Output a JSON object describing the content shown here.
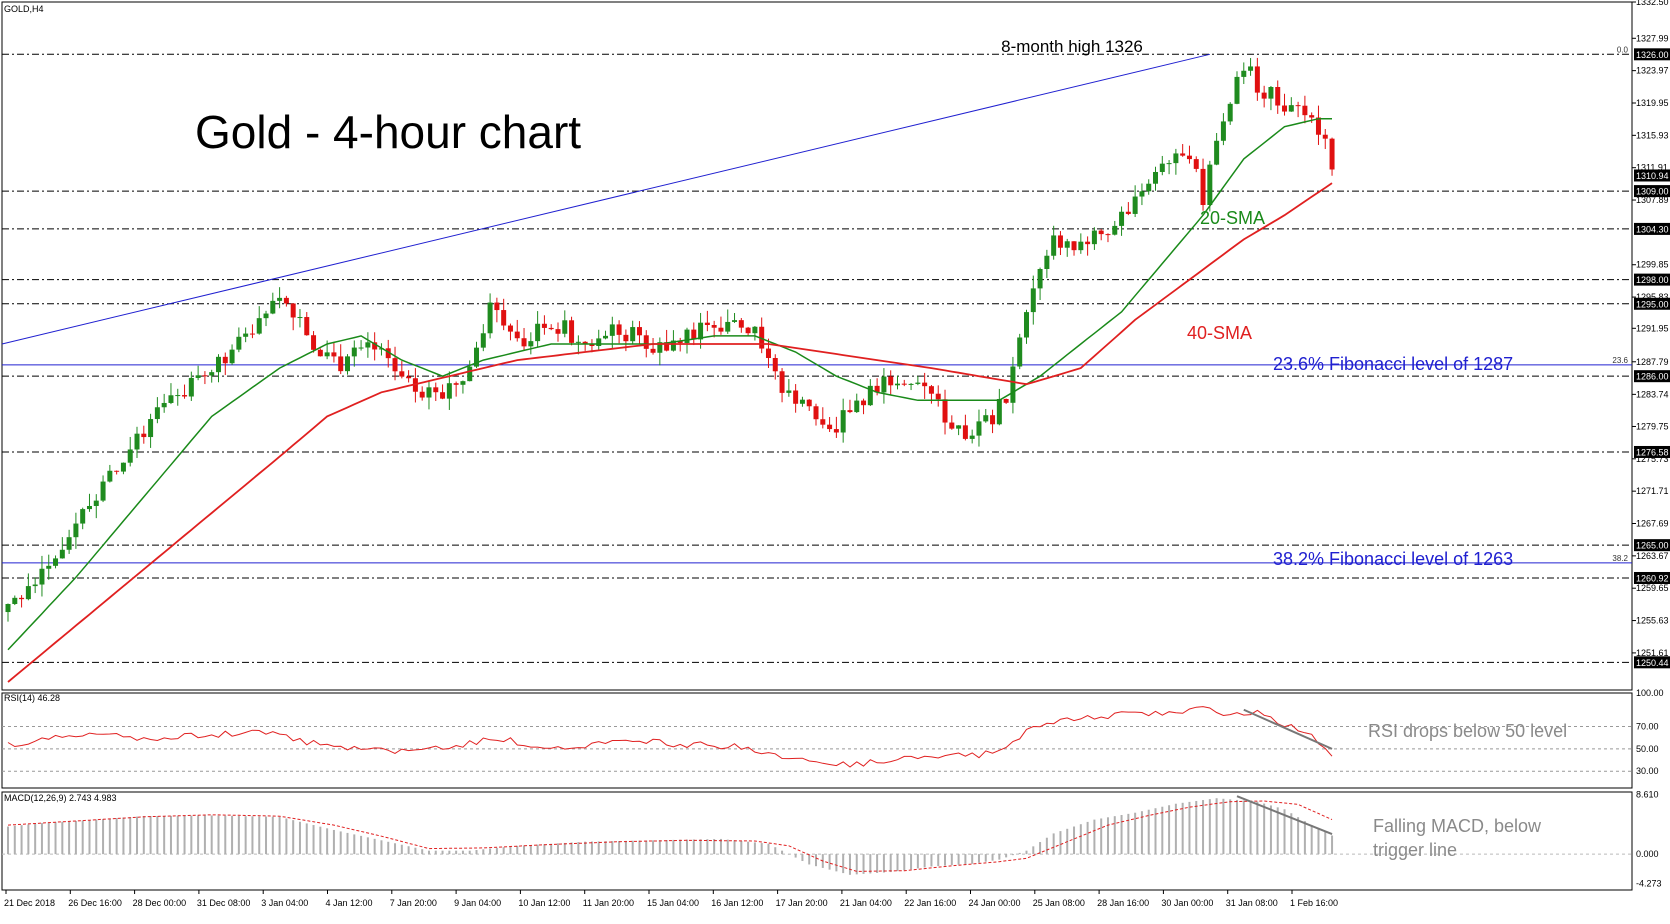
{
  "symbol_label": "GOLD,H4",
  "title": "Gold - 4-hour chart",
  "annotations": {
    "high": "8-month high 1326",
    "sma20": "20-SMA",
    "sma40": "40-SMA",
    "fib236": "23.6% Fibonacci level of 1287",
    "fib382": "38.2% Fibonacci level of 1263",
    "rsi_note": "RSI drops below 50 level",
    "macd_note_1": "Falling MACD, below",
    "macd_note_2": "trigger line"
  },
  "rsi_label": "RSI(14) 46.28",
  "macd_label": "MACD(12,26,9) 2.743 4.983",
  "colors": {
    "bull": "#1f8b1f",
    "bear": "#e01010",
    "sma20": "#1a8a1a",
    "sma40": "#e02020",
    "fib": "#2020d0",
    "trend": "#2020d0",
    "rsi": "#e02020",
    "macd_hist": "#b0b0b0",
    "macd_signal": "#e02020",
    "grid": "#000000",
    "annotation_gray": "#8a8a8a"
  },
  "chart_data": [
    {
      "type": "candlestick",
      "title": "Gold - 4-hour chart",
      "ylim": [
        1247,
        1332.5
      ],
      "y_ticks": [
        "1332.50",
        "1327.99",
        "1323.97",
        "1319.95",
        "1315.93",
        "1311.91",
        "1307.89",
        "1299.85",
        "1295.83",
        "1291.95",
        "1287.79",
        "1283.74",
        "1279.75",
        "1275.73",
        "1271.71",
        "1267.69",
        "1263.67",
        "1259.65",
        "1255.63",
        "1251.61"
      ],
      "levels": [
        {
          "value": 1326.0,
          "label": "1326.00",
          "style": "dash",
          "fib_label": "0.0"
        },
        {
          "value": 1310.94,
          "label": "1310.94",
          "style": "price"
        },
        {
          "value": 1309.0,
          "label": "1309.00",
          "style": "dash"
        },
        {
          "value": 1304.3,
          "label": "1304.30",
          "style": "dash"
        },
        {
          "value": 1298.0,
          "label": "1298.00",
          "style": "dash"
        },
        {
          "value": 1295.0,
          "label": "1295.00",
          "style": "dash"
        },
        {
          "value": 1287.4,
          "label": "",
          "style": "fib",
          "fib_label": "23.6"
        },
        {
          "value": 1286.0,
          "label": "1286.00",
          "style": "dash"
        },
        {
          "value": 1276.58,
          "label": "1276.58",
          "style": "dash"
        },
        {
          "value": 1265.0,
          "label": "1265.00",
          "style": "dash"
        },
        {
          "value": 1262.8,
          "label": "",
          "style": "fib",
          "fib_label": "38.2"
        },
        {
          "value": 1260.92,
          "label": "1260.92",
          "style": "dash"
        },
        {
          "value": 1250.44,
          "label": "1250.44",
          "style": "dash"
        }
      ],
      "x_labels": [
        "21 Dec 2018",
        "26 Dec 16:00",
        "28 Dec 00:00",
        "31 Dec 08:00",
        "3 Jan 04:00",
        "4 Jan 12:00",
        "7 Jan 20:00",
        "9 Jan 04:00",
        "10 Jan 12:00",
        "11 Jan 20:00",
        "15 Jan 04:00",
        "16 Jan 12:00",
        "17 Jan 20:00",
        "21 Jan 04:00",
        "22 Jan 16:00",
        "24 Jan 00:00",
        "25 Jan 08:00",
        "28 Jan 16:00",
        "30 Jan 00:00",
        "31 Jan 08:00",
        "1 Feb 16:00"
      ],
      "close_anchors": [
        [
          0,
          1257
        ],
        [
          6,
          1263
        ],
        [
          10,
          1268
        ],
        [
          16,
          1275
        ],
        [
          22,
          1281
        ],
        [
          28,
          1286
        ],
        [
          34,
          1290
        ],
        [
          38,
          1294
        ],
        [
          40,
          1297
        ],
        [
          45,
          1290
        ],
        [
          49,
          1287
        ],
        [
          53,
          1291
        ],
        [
          58,
          1286
        ],
        [
          63,
          1283
        ],
        [
          68,
          1287
        ],
        [
          71,
          1295
        ],
        [
          75,
          1290
        ],
        [
          80,
          1293
        ],
        [
          85,
          1290
        ],
        [
          90,
          1292
        ],
        [
          96,
          1289
        ],
        [
          101,
          1291
        ],
        [
          106,
          1293
        ],
        [
          110,
          1291
        ],
        [
          113,
          1286
        ],
        [
          117,
          1282
        ],
        [
          122,
          1280
        ],
        [
          127,
          1284
        ],
        [
          132,
          1286
        ],
        [
          137,
          1282
        ],
        [
          141,
          1279
        ],
        [
          144,
          1280
        ],
        [
          147,
          1283
        ],
        [
          149,
          1290
        ],
        [
          151,
          1298
        ],
        [
          154,
          1303
        ],
        [
          158,
          1302
        ],
        [
          162,
          1304
        ],
        [
          165,
          1307
        ],
        [
          170,
          1312
        ],
        [
          174,
          1313
        ],
        [
          176,
          1308
        ],
        [
          178,
          1316
        ],
        [
          181,
          1322
        ],
        [
          183,
          1324
        ],
        [
          185,
          1321
        ],
        [
          188,
          1320
        ],
        [
          191,
          1319
        ],
        [
          193,
          1317
        ],
        [
          194,
          1316
        ],
        [
          195,
          1312
        ]
      ],
      "sma20_anchors": [
        [
          0,
          1252
        ],
        [
          10,
          1261
        ],
        [
          20,
          1271
        ],
        [
          30,
          1281
        ],
        [
          40,
          1287
        ],
        [
          47,
          1290
        ],
        [
          52,
          1291
        ],
        [
          58,
          1288
        ],
        [
          64,
          1286
        ],
        [
          70,
          1288
        ],
        [
          80,
          1290
        ],
        [
          88,
          1290
        ],
        [
          96,
          1290
        ],
        [
          104,
          1291
        ],
        [
          110,
          1291
        ],
        [
          116,
          1289
        ],
        [
          122,
          1286
        ],
        [
          128,
          1284
        ],
        [
          134,
          1283
        ],
        [
          140,
          1283
        ],
        [
          146,
          1283
        ],
        [
          152,
          1286
        ],
        [
          158,
          1290
        ],
        [
          164,
          1294
        ],
        [
          170,
          1300
        ],
        [
          176,
          1306
        ],
        [
          182,
          1313
        ],
        [
          188,
          1317
        ],
        [
          193,
          1318
        ],
        [
          195,
          1318
        ]
      ],
      "sma40_anchors": [
        [
          0,
          1248
        ],
        [
          10,
          1255
        ],
        [
          20,
          1262
        ],
        [
          30,
          1269
        ],
        [
          40,
          1276
        ],
        [
          47,
          1281
        ],
        [
          55,
          1284
        ],
        [
          65,
          1286
        ],
        [
          75,
          1288
        ],
        [
          85,
          1289
        ],
        [
          95,
          1290
        ],
        [
          105,
          1290
        ],
        [
          112,
          1290
        ],
        [
          120,
          1289
        ],
        [
          128,
          1288
        ],
        [
          136,
          1287
        ],
        [
          143,
          1286
        ],
        [
          150,
          1285
        ],
        [
          158,
          1287
        ],
        [
          166,
          1293
        ],
        [
          174,
          1298
        ],
        [
          182,
          1303
        ],
        [
          188,
          1306
        ],
        [
          195,
          1310
        ]
      ],
      "trendline": {
        "from": [
          0,
          1290
        ],
        "to": [
          177,
          1326
        ]
      }
    },
    {
      "type": "line",
      "name": "RSI(14)",
      "value": 46.28,
      "ylim": [
        15,
        100
      ],
      "y_ticks": [
        "100.00",
        "70.00",
        "50.00",
        "30.00"
      ],
      "reference_lines": [
        70,
        50,
        30
      ],
      "anchors": [
        [
          0,
          54
        ],
        [
          10,
          62
        ],
        [
          20,
          60
        ],
        [
          30,
          62
        ],
        [
          38,
          66
        ],
        [
          42,
          58
        ],
        [
          48,
          52
        ],
        [
          55,
          48
        ],
        [
          62,
          50
        ],
        [
          68,
          55
        ],
        [
          72,
          60
        ],
        [
          76,
          55
        ],
        [
          82,
          52
        ],
        [
          88,
          55
        ],
        [
          95,
          56
        ],
        [
          100,
          54
        ],
        [
          108,
          52
        ],
        [
          112,
          44
        ],
        [
          118,
          38
        ],
        [
          124,
          36
        ],
        [
          130,
          40
        ],
        [
          136,
          42
        ],
        [
          142,
          44
        ],
        [
          146,
          48
        ],
        [
          150,
          66
        ],
        [
          156,
          78
        ],
        [
          162,
          80
        ],
        [
          170,
          82
        ],
        [
          176,
          86
        ],
        [
          180,
          78
        ],
        [
          184,
          84
        ],
        [
          188,
          72
        ],
        [
          192,
          62
        ],
        [
          195,
          46
        ]
      ]
    },
    {
      "type": "bar",
      "name": "MACD(12,26,9)",
      "macd": 2.743,
      "signal": 4.983,
      "ylim": [
        -5.2,
        9.0
      ],
      "y_ticks": [
        "8.610",
        "0.000",
        "-4.273"
      ],
      "hist_anchors": [
        [
          0,
          4.0
        ],
        [
          5,
          4.5
        ],
        [
          10,
          4.8
        ],
        [
          20,
          5.5
        ],
        [
          30,
          5.6
        ],
        [
          40,
          5.4
        ],
        [
          48,
          3.5
        ],
        [
          55,
          2.0
        ],
        [
          62,
          0.5
        ],
        [
          68,
          0.5
        ],
        [
          75,
          1.2
        ],
        [
          85,
          1.8
        ],
        [
          95,
          2.0
        ],
        [
          105,
          2.2
        ],
        [
          112,
          1.5
        ],
        [
          118,
          -1.5
        ],
        [
          124,
          -3.0
        ],
        [
          130,
          -2.6
        ],
        [
          136,
          -1.8
        ],
        [
          142,
          -1.4
        ],
        [
          146,
          -0.8
        ],
        [
          150,
          0.5
        ],
        [
          154,
          3.0
        ],
        [
          160,
          5.0
        ],
        [
          166,
          6.0
        ],
        [
          172,
          7.3
        ],
        [
          178,
          8.1
        ],
        [
          184,
          7.6
        ],
        [
          188,
          6.5
        ],
        [
          192,
          4.2
        ],
        [
          195,
          2.7
        ]
      ],
      "signal_anchors": [
        [
          0,
          4.2
        ],
        [
          10,
          4.8
        ],
        [
          20,
          5.4
        ],
        [
          30,
          5.7
        ],
        [
          40,
          5.5
        ],
        [
          48,
          4.2
        ],
        [
          55,
          2.6
        ],
        [
          62,
          0.8
        ],
        [
          70,
          0.9
        ],
        [
          80,
          1.4
        ],
        [
          90,
          1.8
        ],
        [
          100,
          2.0
        ],
        [
          110,
          1.9
        ],
        [
          115,
          1.2
        ],
        [
          120,
          -1.0
        ],
        [
          125,
          -2.5
        ],
        [
          132,
          -2.4
        ],
        [
          140,
          -1.6
        ],
        [
          146,
          -1.1
        ],
        [
          150,
          -0.6
        ],
        [
          156,
          1.8
        ],
        [
          162,
          4.2
        ],
        [
          168,
          5.6
        ],
        [
          174,
          6.8
        ],
        [
          180,
          7.6
        ],
        [
          185,
          7.7
        ],
        [
          190,
          7.2
        ],
        [
          195,
          5.0
        ]
      ]
    }
  ]
}
